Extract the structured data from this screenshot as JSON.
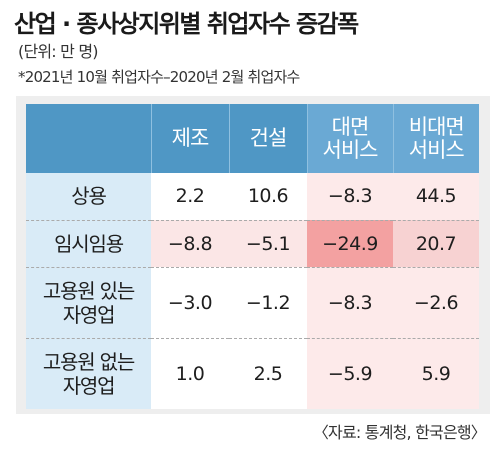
{
  "title": "산업 · 종사상지위별 취업자수 증감폭",
  "unit": "(단위: 만 명)",
  "note": "*2021년 10월 취업자수–2020년 2월 취업자수",
  "source": "〈자료: 통계청, 한국은행〉",
  "chart_data": {
    "type": "table",
    "columns": [
      {
        "line1": "제조",
        "line2": ""
      },
      {
        "line1": "건설",
        "line2": ""
      },
      {
        "line1": "대면",
        "line2": "서비스"
      },
      {
        "line1": "비대면",
        "line2": "서비스"
      }
    ],
    "rows": [
      {
        "line1": "상용",
        "line2": "",
        "values": [
          "2.2",
          "10.6",
          "−8.3",
          "44.5"
        ]
      },
      {
        "line1": "임시임용",
        "line2": "",
        "values": [
          "−8.8",
          "−5.1",
          "−24.9",
          "20.7"
        ]
      },
      {
        "line1": "고용원 있는",
        "line2": "자영업",
        "values": [
          "−3.0",
          "−1.2",
          "−8.3",
          "−2.6"
        ]
      },
      {
        "line1": "고용원 없는",
        "line2": "자영업",
        "values": [
          "1.0",
          "2.5",
          "−5.9",
          "5.9"
        ]
      }
    ],
    "highlight": {
      "row": 1,
      "col": 2
    },
    "colors": {
      "header": "#4f97c5",
      "row_label_bg": "#d9ebf7",
      "service_bg": "#fdeaea",
      "highlight_bg": "#f6a8a8",
      "panel_bg": "#eeeeee"
    }
  }
}
